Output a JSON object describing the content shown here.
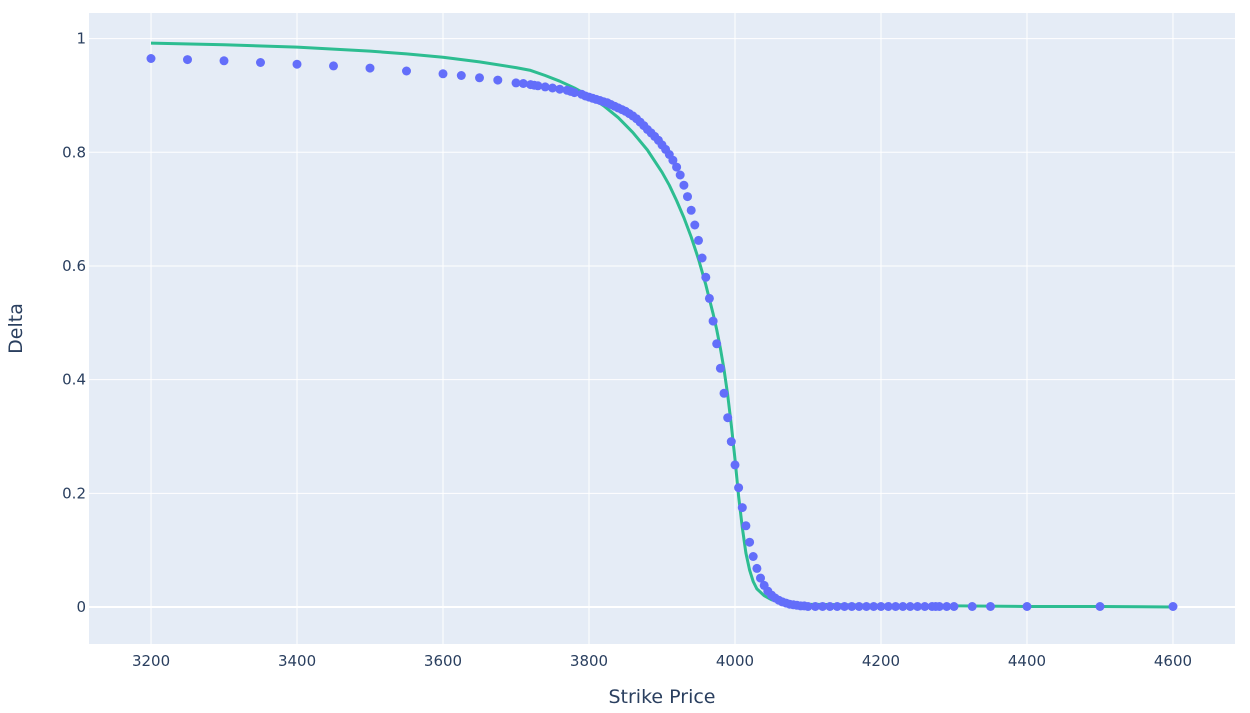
{
  "chart_data": {
    "type": "scatter",
    "title": "",
    "xlabel": "Strike Price",
    "ylabel": "Delta",
    "xlim": [
      3115,
      4685
    ],
    "ylim": [
      -0.065,
      1.045
    ],
    "x_ticks": [
      3200,
      3400,
      3600,
      3800,
      4000,
      4200,
      4400,
      4600
    ],
    "y_ticks": [
      0,
      0.2,
      0.4,
      0.6,
      0.8,
      1
    ],
    "x_tick_labels": [
      "3200",
      "3400",
      "3600",
      "3800",
      "4000",
      "4200",
      "4400",
      "4600"
    ],
    "y_tick_labels": [
      "0",
      "0.2",
      "0.4",
      "0.6",
      "0.8",
      "1"
    ],
    "grid": true,
    "legend": "none",
    "plot_bgcolor": "#e5ecf6",
    "grid_color": "#ffffff",
    "series": [
      {
        "mode": "markers",
        "color": "#636efa",
        "points": [
          [
            3200,
            0.965
          ],
          [
            3250,
            0.963
          ],
          [
            3300,
            0.961
          ],
          [
            3350,
            0.958
          ],
          [
            3400,
            0.955
          ],
          [
            3450,
            0.952
          ],
          [
            3500,
            0.948
          ],
          [
            3550,
            0.943
          ],
          [
            3600,
            0.938
          ],
          [
            3625,
            0.935
          ],
          [
            3650,
            0.931
          ],
          [
            3675,
            0.927
          ],
          [
            3700,
            0.922
          ],
          [
            3710,
            0.921
          ],
          [
            3720,
            0.919
          ],
          [
            3725,
            0.918
          ],
          [
            3730,
            0.917
          ],
          [
            3740,
            0.915
          ],
          [
            3750,
            0.913
          ],
          [
            3760,
            0.911
          ],
          [
            3770,
            0.909
          ],
          [
            3775,
            0.907
          ],
          [
            3780,
            0.905
          ],
          [
            3790,
            0.902
          ],
          [
            3795,
            0.899
          ],
          [
            3800,
            0.897
          ],
          [
            3805,
            0.895
          ],
          [
            3810,
            0.893
          ],
          [
            3815,
            0.891
          ],
          [
            3820,
            0.889
          ],
          [
            3825,
            0.887
          ],
          [
            3830,
            0.884
          ],
          [
            3835,
            0.881
          ],
          [
            3840,
            0.878
          ],
          [
            3845,
            0.875
          ],
          [
            3850,
            0.872
          ],
          [
            3855,
            0.868
          ],
          [
            3860,
            0.864
          ],
          [
            3865,
            0.859
          ],
          [
            3870,
            0.853
          ],
          [
            3875,
            0.847
          ],
          [
            3880,
            0.84
          ],
          [
            3885,
            0.834
          ],
          [
            3890,
            0.828
          ],
          [
            3895,
            0.821
          ],
          [
            3900,
            0.813
          ],
          [
            3905,
            0.805
          ],
          [
            3910,
            0.796
          ],
          [
            3915,
            0.786
          ],
          [
            3920,
            0.774
          ],
          [
            3925,
            0.76
          ],
          [
            3930,
            0.742
          ],
          [
            3935,
            0.722
          ],
          [
            3940,
            0.698
          ],
          [
            3945,
            0.672
          ],
          [
            3950,
            0.645
          ],
          [
            3955,
            0.614
          ],
          [
            3960,
            0.58
          ],
          [
            3965,
            0.543
          ],
          [
            3970,
            0.503
          ],
          [
            3975,
            0.463
          ],
          [
            3980,
            0.42
          ],
          [
            3985,
            0.376
          ],
          [
            3990,
            0.333
          ],
          [
            3995,
            0.291
          ],
          [
            4000,
            0.25
          ],
          [
            4005,
            0.21
          ],
          [
            4010,
            0.175
          ],
          [
            4015,
            0.143
          ],
          [
            4020,
            0.114
          ],
          [
            4025,
            0.089
          ],
          [
            4030,
            0.068
          ],
          [
            4035,
            0.051
          ],
          [
            4040,
            0.038
          ],
          [
            4045,
            0.028
          ],
          [
            4050,
            0.021
          ],
          [
            4055,
            0.016
          ],
          [
            4060,
            0.012
          ],
          [
            4065,
            0.009
          ],
          [
            4070,
            0.007
          ],
          [
            4075,
            0.005
          ],
          [
            4080,
            0.004
          ],
          [
            4085,
            0.003
          ],
          [
            4090,
            0.002
          ],
          [
            4095,
            0.002
          ],
          [
            4100,
            0.001
          ],
          [
            4110,
            0.001
          ],
          [
            4120,
            0.001
          ],
          [
            4130,
            0.001
          ],
          [
            4140,
            0.001
          ],
          [
            4150,
            0.001
          ],
          [
            4160,
            0.001
          ],
          [
            4170,
            0.001
          ],
          [
            4180,
            0.001
          ],
          [
            4190,
            0.001
          ],
          [
            4200,
            0.001
          ],
          [
            4210,
            0.001
          ],
          [
            4220,
            0.001
          ],
          [
            4230,
            0.001
          ],
          [
            4240,
            0.001
          ],
          [
            4250,
            0.001
          ],
          [
            4260,
            0.001
          ],
          [
            4270,
            0.001
          ],
          [
            4275,
            0.001
          ],
          [
            4280,
            0.001
          ],
          [
            4290,
            0.001
          ],
          [
            4300,
            0.001
          ],
          [
            4325,
            0.001
          ],
          [
            4350,
            0.001
          ],
          [
            4400,
            0.001
          ],
          [
            4500,
            0.001
          ],
          [
            4600,
            0.001
          ]
        ]
      },
      {
        "mode": "lines",
        "color": "#2dbd91",
        "points": [
          [
            3200,
            0.992
          ],
          [
            3300,
            0.989
          ],
          [
            3400,
            0.985
          ],
          [
            3500,
            0.978
          ],
          [
            3550,
            0.973
          ],
          [
            3600,
            0.967
          ],
          [
            3650,
            0.959
          ],
          [
            3700,
            0.949
          ],
          [
            3720,
            0.944
          ],
          [
            3740,
            0.935
          ],
          [
            3760,
            0.925
          ],
          [
            3780,
            0.913
          ],
          [
            3800,
            0.899
          ],
          [
            3820,
            0.882
          ],
          [
            3840,
            0.861
          ],
          [
            3860,
            0.835
          ],
          [
            3880,
            0.804
          ],
          [
            3900,
            0.765
          ],
          [
            3910,
            0.742
          ],
          [
            3920,
            0.715
          ],
          [
            3930,
            0.685
          ],
          [
            3940,
            0.651
          ],
          [
            3950,
            0.612
          ],
          [
            3960,
            0.567
          ],
          [
            3970,
            0.516
          ],
          [
            3975,
            0.488
          ],
          [
            3980,
            0.455
          ],
          [
            3985,
            0.418
          ],
          [
            3990,
            0.373
          ],
          [
            3995,
            0.32
          ],
          [
            4000,
            0.26
          ],
          [
            4005,
            0.195
          ],
          [
            4010,
            0.14
          ],
          [
            4015,
            0.095
          ],
          [
            4020,
            0.065
          ],
          [
            4025,
            0.045
          ],
          [
            4030,
            0.032
          ],
          [
            4040,
            0.02
          ],
          [
            4050,
            0.013
          ],
          [
            4060,
            0.009
          ],
          [
            4080,
            0.006
          ],
          [
            4100,
            0.005
          ],
          [
            4150,
            0.004
          ],
          [
            4200,
            0.003
          ],
          [
            4300,
            0.002
          ],
          [
            4400,
            0.001
          ],
          [
            4500,
            0.001
          ],
          [
            4600,
            0.0
          ]
        ]
      }
    ]
  }
}
